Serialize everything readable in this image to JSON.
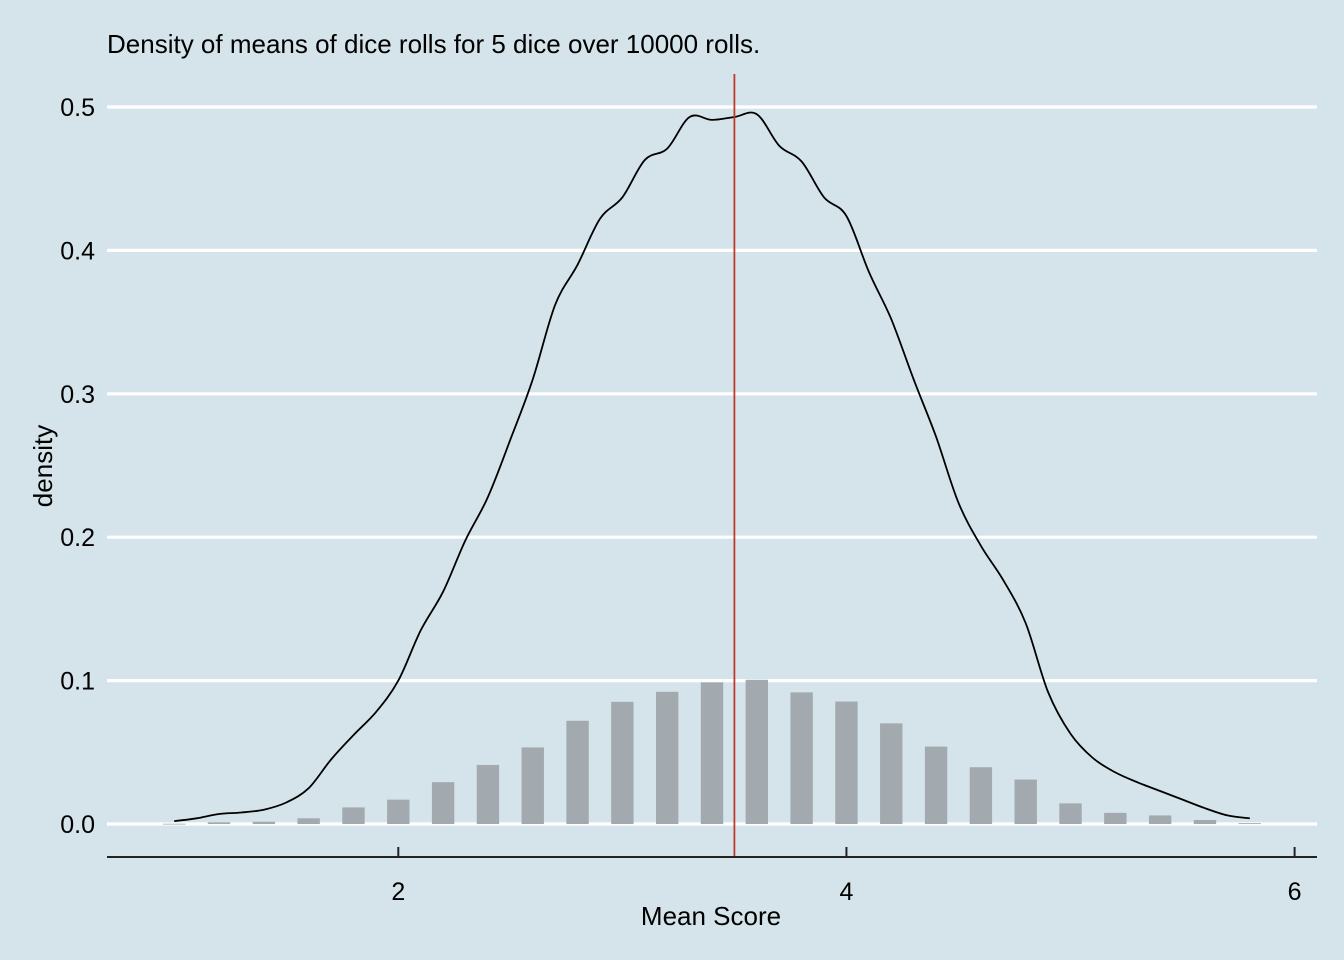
{
  "chart_data": {
    "type": "bar",
    "title": "Density of means of dice rolls for 5 dice over 10000 rolls.",
    "xlabel": "Mean Score",
    "ylabel": "density",
    "xlim": [
      0.7,
      6.1
    ],
    "ylim": [
      -0.023,
      0.523
    ],
    "x_ticks": [
      2,
      4,
      6
    ],
    "y_ticks": [
      0.0,
      0.1,
      0.2,
      0.3,
      0.4,
      0.5
    ],
    "y_tick_labels": [
      "0.0",
      "0.1",
      "0.2",
      "0.3",
      "0.4",
      "0.5"
    ],
    "grid": "horizontal",
    "bars": {
      "x": [
        1.0,
        1.2,
        1.4,
        1.6,
        1.8,
        2.0,
        2.2,
        2.4,
        2.6,
        2.8,
        3.0,
        3.2,
        3.4,
        3.6,
        3.8,
        4.0,
        4.2,
        4.4,
        4.6,
        4.8,
        5.0,
        5.2,
        5.4,
        5.6,
        5.8
      ],
      "values": [
        0.0002,
        0.0012,
        0.0016,
        0.004,
        0.0116,
        0.017,
        0.0292,
        0.0412,
        0.0534,
        0.072,
        0.0852,
        0.0922,
        0.0988,
        0.1006,
        0.0918,
        0.0854,
        0.0702,
        0.054,
        0.0396,
        0.031,
        0.0144,
        0.0078,
        0.006,
        0.0028,
        0.0006
      ],
      "color": "#a3aaaf"
    },
    "density": {
      "x": [
        1.0,
        1.1,
        1.2,
        1.3,
        1.4,
        1.5,
        1.6,
        1.7,
        1.8,
        1.9,
        2.0,
        2.1,
        2.2,
        2.3,
        2.4,
        2.5,
        2.6,
        2.7,
        2.8,
        2.9,
        3.0,
        3.1,
        3.2,
        3.3,
        3.4,
        3.5,
        3.6,
        3.7,
        3.8,
        3.9,
        4.0,
        4.1,
        4.2,
        4.3,
        4.4,
        4.5,
        4.6,
        4.7,
        4.8,
        4.9,
        5.0,
        5.1,
        5.2,
        5.3,
        5.4,
        5.5,
        5.6,
        5.7,
        5.8
      ],
      "values": [
        0.002,
        0.004,
        0.007,
        0.008,
        0.01,
        0.015,
        0.025,
        0.045,
        0.062,
        0.078,
        0.1,
        0.135,
        0.162,
        0.198,
        0.228,
        0.268,
        0.31,
        0.362,
        0.39,
        0.422,
        0.437,
        0.463,
        0.471,
        0.493,
        0.491,
        0.493,
        0.495,
        0.473,
        0.462,
        0.437,
        0.424,
        0.385,
        0.352,
        0.31,
        0.27,
        0.224,
        0.194,
        0.17,
        0.14,
        0.092,
        0.063,
        0.046,
        0.036,
        0.029,
        0.023,
        0.017,
        0.011,
        0.006,
        0.004
      ],
      "color": "#000000"
    },
    "mean_line": {
      "x": 3.5,
      "color": "#c0392b"
    }
  }
}
